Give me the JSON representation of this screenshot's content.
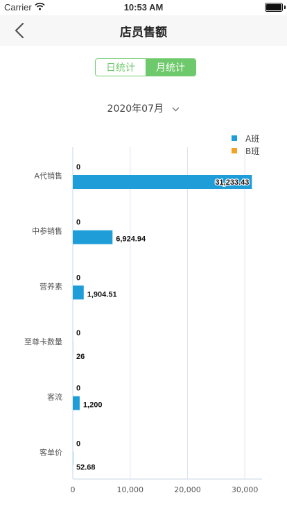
{
  "status_bar": {
    "carrier": "Carrier",
    "time": "10:53 AM"
  },
  "nav": {
    "title": "店员售额"
  },
  "segment": {
    "day_label": "日统计",
    "month_label": "月统计",
    "selected": "month"
  },
  "date_picker": {
    "value": "2020年07月"
  },
  "colors": {
    "series_a": "#1f9dd9",
    "series_b": "#f4a127",
    "accent": "#6dc96b"
  },
  "chart_data": {
    "type": "bar",
    "orientation": "horizontal",
    "categories": [
      "A代销售",
      "中参销售",
      "营养素",
      "至尊卡数量",
      "客流",
      "客单价"
    ],
    "series": [
      {
        "name": "A班",
        "values": [
          31233.43,
          6924.94,
          1904.51,
          26,
          1200,
          52.68
        ],
        "labels": [
          "31,233.43",
          "6,924.94",
          "1,904.51",
          "26",
          "1,200",
          "52.68"
        ]
      },
      {
        "name": "B班",
        "values": [
          0,
          0,
          0,
          0,
          0,
          0
        ],
        "labels": [
          "0",
          "0",
          "0",
          "0",
          "0",
          "0"
        ]
      }
    ],
    "x_ticks": [
      0,
      10000,
      20000,
      30000
    ],
    "x_tick_labels": [
      "0",
      "10,000",
      "20,000",
      "30,000"
    ],
    "xlim": [
      0,
      33000
    ],
    "grid": true,
    "legend_position": "top-right"
  }
}
